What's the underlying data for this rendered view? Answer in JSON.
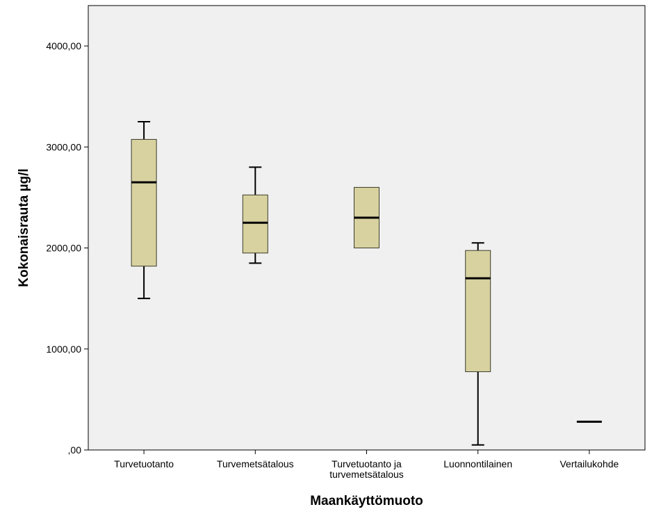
{
  "chart_data": {
    "type": "boxplot",
    "xlabel": "Maankäyttömuoto",
    "ylabel": "Kokonaisrauta µg/l",
    "ylim": [
      0,
      4400
    ],
    "yticks": [
      0,
      1000,
      2000,
      3000,
      4000
    ],
    "ytick_labels": [
      ",00",
      "1000,00",
      "2000,00",
      "3000,00",
      "4000,00"
    ],
    "grid": false,
    "plot_background": "#f0f0f0",
    "box_fill": "#d8d2a0",
    "categories": [
      {
        "label_lines": [
          "Turvetuotanto"
        ],
        "min": 1500,
        "q1": 1820,
        "median": 2650,
        "q3": 3075,
        "max": 3250
      },
      {
        "label_lines": [
          "Turvemetsätalous"
        ],
        "min": 1850,
        "q1": 1950,
        "median": 2250,
        "q3": 2525,
        "max": 2800
      },
      {
        "label_lines": [
          "Turvetuotanto ja",
          "turvemetsätalous"
        ],
        "min": 2000,
        "q1": 2000,
        "median": 2300,
        "q3": 2600,
        "max": 2600
      },
      {
        "label_lines": [
          "Luonnontilainen"
        ],
        "min": 50,
        "q1": 775,
        "median": 1700,
        "q3": 1975,
        "max": 2050
      },
      {
        "label_lines": [
          "Vertailukohde"
        ],
        "min": 280,
        "q1": 280,
        "median": 280,
        "q3": 280,
        "max": 280
      }
    ]
  }
}
